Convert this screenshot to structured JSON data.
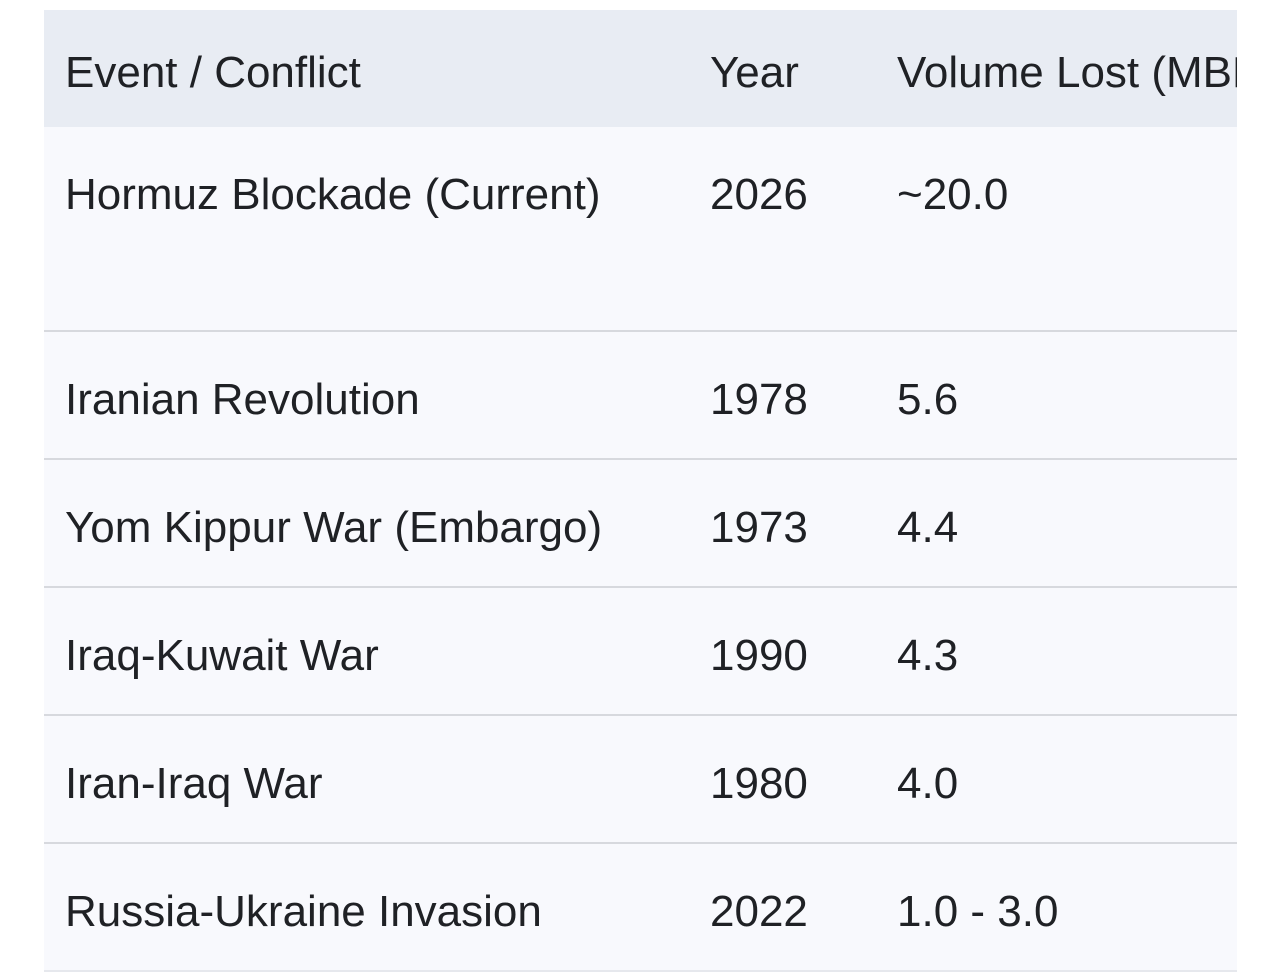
{
  "colors": {
    "header_bg": "#e8ecf3",
    "row_bg": "#f8f9fd",
    "divider": "#d7d9de",
    "divider_light": "#e6e8ed",
    "text": "#1f2125",
    "page_bg": "#ffffff"
  },
  "table": {
    "columns": {
      "event": "Event / Conflict",
      "year": "Year",
      "volume": "Volume Lost (MBP"
    },
    "rows": [
      {
        "event": "Hormuz Blockade (Current)",
        "year": "2026",
        "volume": "~20.0"
      },
      {
        "event": "Iranian Revolution",
        "year": "1978",
        "volume": "5.6"
      },
      {
        "event": "Yom Kippur War (Embargo)",
        "year": "1973",
        "volume": "4.4"
      },
      {
        "event": "Iraq-Kuwait War",
        "year": "1990",
        "volume": "4.3"
      },
      {
        "event": "Iran-Iraq War",
        "year": "1980",
        "volume": "4.0"
      },
      {
        "event": "Russia-Ukraine Invasion",
        "year": "2022",
        "volume": "1.0 - 3.0"
      }
    ]
  }
}
